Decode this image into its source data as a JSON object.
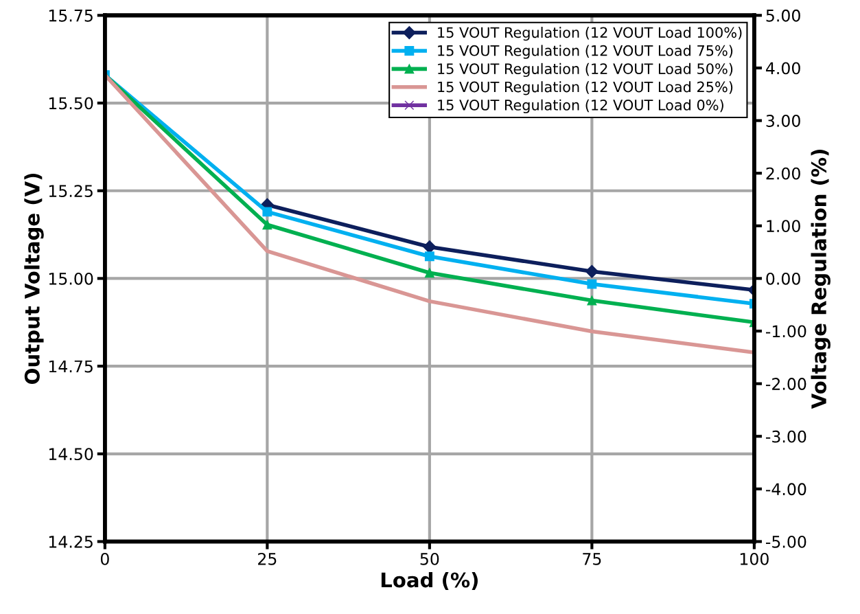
{
  "chart_data": {
    "type": "line",
    "xlabel": "Load (%)",
    "ylabel": "Output Voltage (V)",
    "y2label": "Voltage Regulation (%)",
    "x": [
      0,
      25,
      50,
      75,
      100
    ],
    "series": [
      {
        "name": "15 VOUT Regulation (12 VOUT Load 100%)",
        "color": "#0d1f5c",
        "marker": "diamond",
        "values": [
          null,
          15.21,
          15.09,
          15.02,
          14.967
        ]
      },
      {
        "name": "15 VOUT Regulation (12 VOUT Load 75%)",
        "color": "#00b0f0",
        "marker": "square",
        "values": [
          15.58,
          15.19,
          15.063,
          14.984,
          14.928
        ]
      },
      {
        "name": "15 VOUT Regulation (12 VOUT Load 50%)",
        "color": "#00b050",
        "marker": "triangle",
        "values": [
          15.58,
          15.153,
          15.016,
          14.937,
          14.875
        ]
      },
      {
        "name": "15 VOUT Regulation (12 VOUT Load 25%)",
        "color": "#d99694",
        "marker": "none",
        "values": [
          15.58,
          15.078,
          14.935,
          14.849,
          14.789
        ]
      },
      {
        "name": "15 VOUT Regulation (12 VOUT Load 0%)",
        "color": "#7030a0",
        "marker": "cross",
        "values": [
          null,
          null,
          null,
          null,
          null
        ]
      }
    ],
    "xlim": [
      0,
      100
    ],
    "xticks": [
      0,
      25,
      50,
      75,
      100
    ],
    "ylim": [
      14.25,
      15.75
    ],
    "yticks": [
      {
        "value": 14.25,
        "label": "14.25"
      },
      {
        "value": 14.5,
        "label": "14.50"
      },
      {
        "value": 14.75,
        "label": "14.75"
      },
      {
        "value": 15.0,
        "label": "15.00"
      },
      {
        "value": 15.25,
        "label": "15.25"
      },
      {
        "value": 15.5,
        "label": "15.50"
      },
      {
        "value": 15.75,
        "label": "15.75"
      }
    ],
    "y2lim": [
      -5,
      5
    ],
    "y2ticks": [
      {
        "value": -5,
        "label": "-5.00"
      },
      {
        "value": -4,
        "label": "-4.00"
      },
      {
        "value": -3,
        "label": "-3.00"
      },
      {
        "value": -2,
        "label": "-2.00"
      },
      {
        "value": -1,
        "label": "-1.00"
      },
      {
        "value": 0,
        "label": "0.00"
      },
      {
        "value": 1,
        "label": "1.00"
      },
      {
        "value": 2,
        "label": "2.00"
      },
      {
        "value": 3,
        "label": "3.00"
      },
      {
        "value": 4,
        "label": "4.00"
      },
      {
        "value": 5,
        "label": "5.00"
      }
    ],
    "grid": true,
    "legend": "top right",
    "line_style": "solid"
  }
}
